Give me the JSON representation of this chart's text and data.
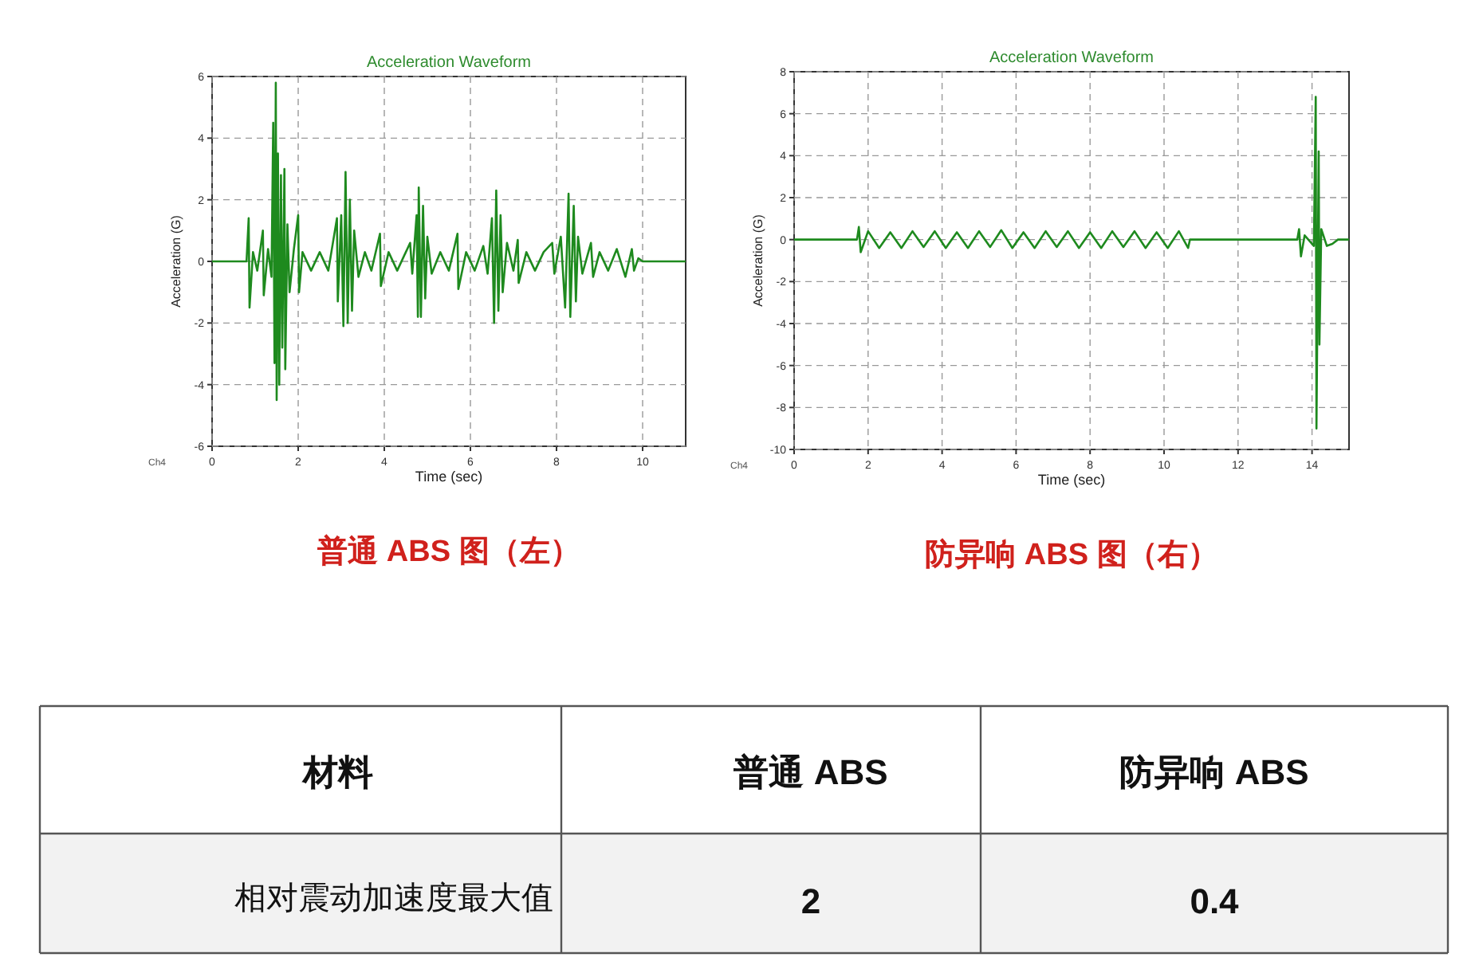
{
  "chart_data": [
    {
      "type": "line",
      "title": "Acceleration Waveform",
      "xlabel": "Time (sec)",
      "ylabel": "Acceleration (G)",
      "xlim": [
        0,
        11
      ],
      "xticks": [
        0,
        2,
        4,
        6,
        8,
        10
      ],
      "ylim": [
        -6,
        6
      ],
      "yticks": [
        -6,
        -4,
        -2,
        0,
        2,
        4,
        6
      ],
      "grid": true,
      "line_style": "solid",
      "annotations": [
        "Ch4",
        "普通 ABS 图（左）"
      ],
      "series": [
        {
          "color": "#1e8a1e",
          "x": [
            0,
            0.8,
            0.85,
            0.87,
            0.95,
            1.05,
            1.18,
            1.2,
            1.3,
            1.38,
            1.42,
            1.45,
            1.48,
            1.5,
            1.53,
            1.56,
            1.6,
            1.63,
            1.68,
            1.7,
            1.75,
            1.8,
            1.9,
            2.0,
            2.02,
            2.1,
            2.3,
            2.5,
            2.7,
            2.9,
            2.92,
            3.0,
            3.05,
            3.1,
            3.15,
            3.2,
            3.25,
            3.3,
            3.4,
            3.55,
            3.7,
            3.9,
            3.92,
            4.1,
            4.3,
            4.5,
            4.6,
            4.65,
            4.75,
            4.78,
            4.8,
            4.85,
            4.9,
            4.95,
            5.0,
            5.1,
            5.3,
            5.5,
            5.7,
            5.72,
            5.9,
            6.1,
            6.3,
            6.4,
            6.5,
            6.55,
            6.6,
            6.65,
            6.7,
            6.75,
            6.85,
            7.0,
            7.1,
            7.12,
            7.3,
            7.5,
            7.7,
            7.9,
            7.95,
            8.1,
            8.2,
            8.28,
            8.32,
            8.4,
            8.45,
            8.5,
            8.6,
            8.8,
            8.85,
            9.0,
            9.2,
            9.4,
            9.6,
            9.75,
            9.8,
            9.9,
            10.0,
            11
          ],
          "values": [
            0,
            0,
            1.4,
            -1.5,
            0.3,
            -0.3,
            1.0,
            -1.1,
            0.4,
            -0.5,
            4.5,
            -3.3,
            5.8,
            -4.5,
            3.5,
            -4.0,
            2.8,
            -2.8,
            3.0,
            -3.5,
            1.2,
            -1.0,
            0.4,
            1.5,
            -1.0,
            0.3,
            -0.3,
            0.3,
            -0.3,
            1.4,
            -1.3,
            1.5,
            -2.1,
            2.9,
            -2.0,
            2.0,
            -1.6,
            1.0,
            -0.5,
            0.3,
            -0.3,
            0.9,
            -0.8,
            0.3,
            -0.3,
            0.3,
            0.6,
            -0.4,
            1.5,
            -1.8,
            2.4,
            -1.8,
            1.8,
            -1.2,
            0.8,
            -0.4,
            0.3,
            -0.3,
            0.9,
            -0.9,
            0.3,
            -0.3,
            0.5,
            -0.4,
            1.4,
            -2.0,
            2.3,
            -1.6,
            1.5,
            -1.0,
            0.6,
            -0.3,
            0.7,
            -0.7,
            0.3,
            -0.3,
            0.3,
            0.6,
            -0.4,
            0.8,
            -1.5,
            2.2,
            -1.8,
            1.8,
            -1.3,
            0.8,
            -0.4,
            0.6,
            -0.5,
            0.3,
            -0.3,
            0.4,
            -0.5,
            0.4,
            -0.3,
            0.1,
            0,
            0
          ]
        }
      ]
    },
    {
      "type": "line",
      "title": "Acceleration Waveform",
      "xlabel": "Time (sec)",
      "ylabel": "Acceleration (G)",
      "xlim": [
        0,
        15
      ],
      "xticks": [
        0,
        2,
        4,
        6,
        8,
        10,
        12,
        14
      ],
      "ylim": [
        -10,
        8
      ],
      "yticks": [
        -10,
        -8,
        -6,
        -4,
        -2,
        0,
        2,
        4,
        6,
        8
      ],
      "grid": true,
      "line_style": "solid",
      "annotations": [
        "Ch4",
        "防异响 ABS 图（右）"
      ],
      "series": [
        {
          "color": "#1e8a1e",
          "x": [
            0,
            1.7,
            1.75,
            1.8,
            2.0,
            2.3,
            2.6,
            2.9,
            3.2,
            3.5,
            3.8,
            4.1,
            4.4,
            4.7,
            5.0,
            5.3,
            5.6,
            5.9,
            6.2,
            6.5,
            6.8,
            7.1,
            7.4,
            7.7,
            8.0,
            8.3,
            8.6,
            8.9,
            9.2,
            9.5,
            9.8,
            10.1,
            10.4,
            10.65,
            10.7,
            13.6,
            13.65,
            13.7,
            13.8,
            14.05,
            14.1,
            14.12,
            14.18,
            14.2,
            14.25,
            14.4,
            14.55,
            14.7,
            15
          ],
          "values": [
            0,
            0,
            0.6,
            -0.6,
            0.4,
            -0.4,
            0.35,
            -0.4,
            0.4,
            -0.35,
            0.4,
            -0.4,
            0.35,
            -0.4,
            0.4,
            -0.35,
            0.45,
            -0.4,
            0.35,
            -0.4,
            0.4,
            -0.35,
            0.4,
            -0.4,
            0.35,
            -0.4,
            0.4,
            -0.35,
            0.4,
            -0.4,
            0.35,
            -0.4,
            0.4,
            -0.4,
            0,
            0,
            0.5,
            -0.8,
            0.2,
            -0.3,
            6.8,
            -9.0,
            4.2,
            -5.0,
            0.5,
            -0.3,
            -0.2,
            0,
            0
          ]
        }
      ]
    },
    {
      "type": "other",
      "xlabel": "材料",
      "ylabel": "相对震动加速度最大值",
      "categories": [
        "普通 ABS",
        "防异响 ABS"
      ],
      "values": [
        2,
        0.4
      ],
      "data_labels": true
    }
  ]
}
